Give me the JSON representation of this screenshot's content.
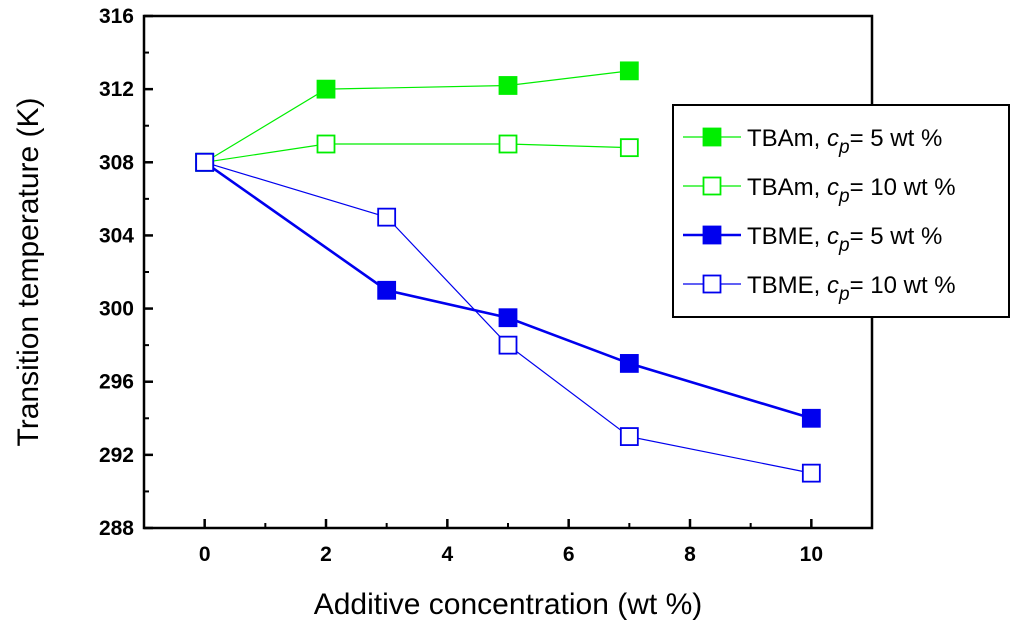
{
  "chart_data": {
    "type": "line",
    "title": "",
    "xlabel": "Additive concentration (wt %)",
    "ylabel": "Transition temperature (K)",
    "xlim": [
      -1,
      11
    ],
    "ylim": [
      288,
      316
    ],
    "xticks": [
      0,
      2,
      4,
      6,
      8,
      10
    ],
    "yticks": [
      288,
      292,
      296,
      300,
      304,
      308,
      312,
      316
    ],
    "legend_position": "right",
    "series": [
      {
        "name": "TBAm, cp= 5 wt %",
        "prefix": "TBAm, ",
        "var": "c",
        "sub": "p",
        "suffix": "= 5 wt %",
        "color": "#00ee00",
        "marker": "filled-square",
        "line": "thin",
        "x": [
          0,
          2,
          5,
          7
        ],
        "y": [
          308.0,
          312.0,
          312.2,
          313.0
        ]
      },
      {
        "name": "TBAm, cp= 10 wt %",
        "prefix": "TBAm, ",
        "var": "c",
        "sub": "p",
        "suffix": "= 10 wt %",
        "color": "#00ee00",
        "marker": "open-square",
        "line": "thin",
        "x": [
          0,
          2,
          5,
          7
        ],
        "y": [
          308.0,
          309.0,
          309.0,
          308.8
        ]
      },
      {
        "name": "TBME, cp= 5 wt %",
        "prefix": "TBME, ",
        "var": "c",
        "sub": "p",
        "suffix": "= 5 wt %",
        "color": "#0000ee",
        "marker": "filled-square",
        "line": "thick",
        "x": [
          0,
          3,
          5,
          7,
          10
        ],
        "y": [
          308.0,
          301.0,
          299.5,
          297.0,
          294.0
        ]
      },
      {
        "name": "TBME, cp= 10 wt %",
        "prefix": "TBME, ",
        "var": "c",
        "sub": "p",
        "suffix": "= 10 wt %",
        "color": "#0000ee",
        "marker": "open-square",
        "line": "thin",
        "x": [
          0,
          3,
          5,
          7,
          10
        ],
        "y": [
          308.0,
          305.0,
          298.0,
          293.0,
          291.0
        ]
      }
    ]
  }
}
